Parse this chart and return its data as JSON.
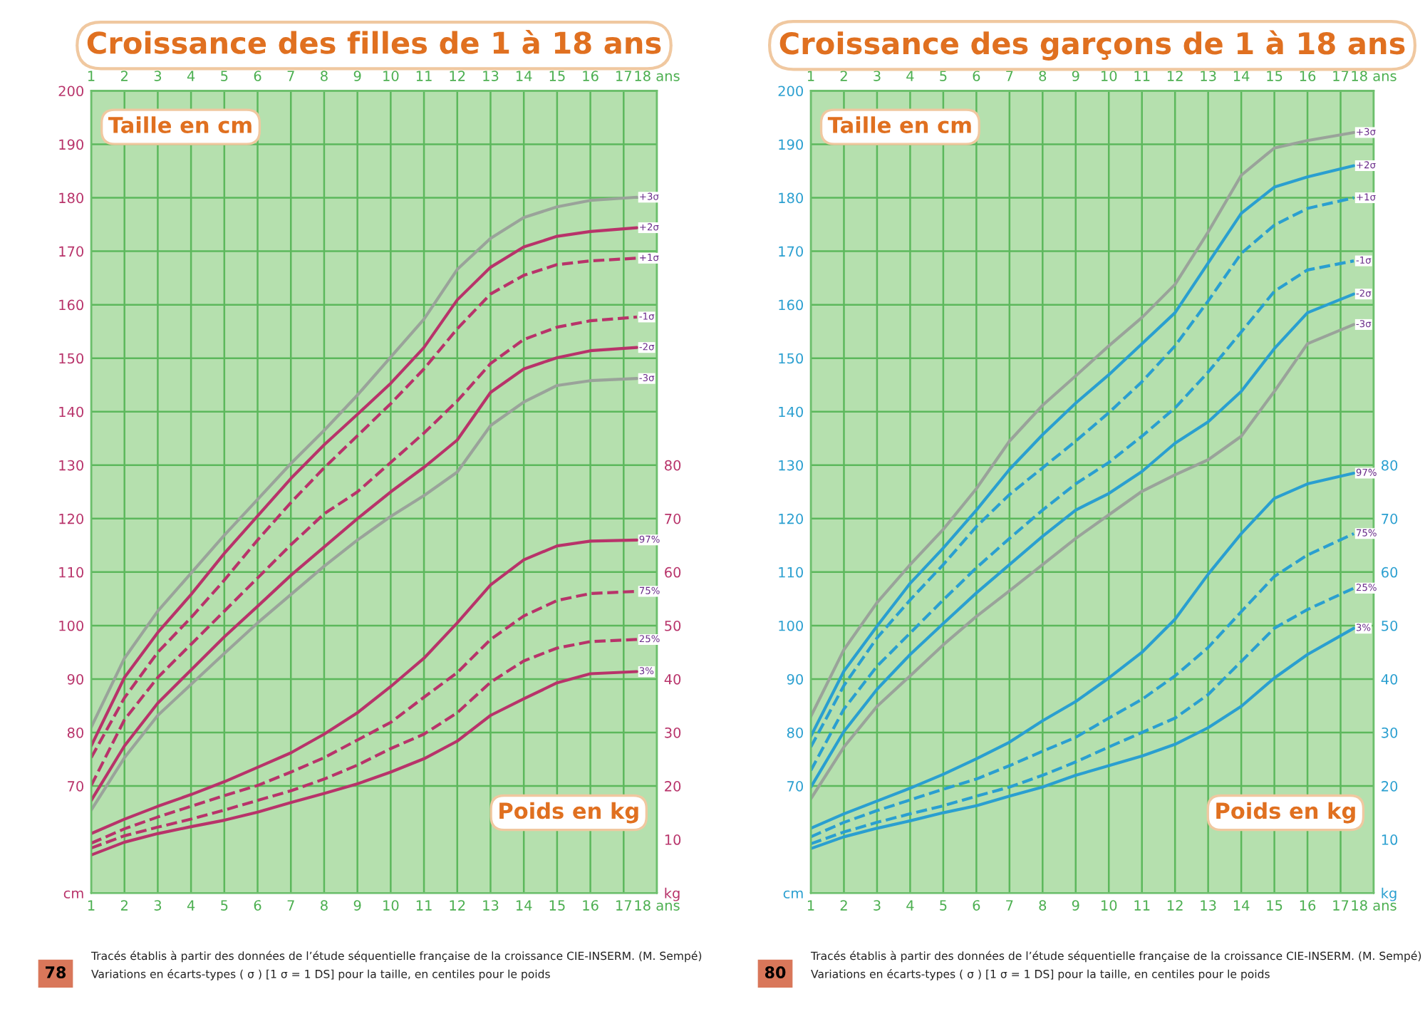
{
  "chart_data": [
    {
      "type": "line",
      "title": "Croissance des filles de 1 à 18 ans",
      "x": [
        1,
        2,
        3,
        4,
        5,
        6,
        7,
        8,
        9,
        10,
        11,
        12,
        13,
        14,
        15,
        16,
        17.4
      ],
      "xlim": [
        1,
        18
      ],
      "xticks": [
        1,
        2,
        3,
        4,
        5,
        6,
        7,
        8,
        9,
        10,
        11,
        12,
        13,
        14,
        15,
        16,
        17,
        {
          "value": 18,
          "label": "18 ans"
        }
      ],
      "x2lim": [
        1,
        18
      ],
      "x2ticks": [
        1,
        2,
        3,
        4,
        5,
        6,
        7,
        8,
        9,
        10,
        11,
        12,
        13,
        14,
        15,
        16,
        17,
        {
          "value": 18,
          "label": "18 ans"
        }
      ],
      "ylim": [
        50,
        200
      ],
      "yticks": [
        {
          "value": 50,
          "label": "cm"
        },
        70,
        80,
        90,
        100,
        110,
        120,
        130,
        140,
        150,
        160,
        170,
        180,
        190,
        200
      ],
      "y2lim": [
        0,
        150
      ],
      "y2ticks": [
        {
          "value": 0,
          "label": "kg"
        },
        10,
        20,
        30,
        40,
        50,
        60,
        70,
        80
      ],
      "grid": true,
      "legend": false,
      "annotations": [
        "Taille en cm",
        "Poids en kg",
        "78",
        "Tracés établis à partir des données de l’étude séquentielle française de la croissance CIE-INSERM. (M. Sempé)",
        "Variations en écarts-types ( σ ) [1 σ = 1 DS] pour la taille, en centiles pour le poids"
      ],
      "series": [
        {
          "name": "+3σ",
          "color": "#9aa39a",
          "line_style": "solid",
          "values": [
            81,
            93.9,
            102.7,
            109.8,
            116.9,
            123.6,
            130.3,
            136.5,
            143.1,
            150.2,
            157.3,
            166.6,
            172.4,
            176.3,
            178.3,
            179.5,
            180.1
          ]
        },
        {
          "name": "+2σ",
          "color": "#b8336a",
          "line_style": "solid",
          "values": [
            77.5,
            90.3,
            98.7,
            105.8,
            113.5,
            120.5,
            127.5,
            133.8,
            139.5,
            145.3,
            152,
            160.9,
            167,
            170.8,
            172.8,
            173.7,
            174.4
          ]
        },
        {
          "name": "+1σ",
          "color": "#b8336a",
          "line_style": "dashed",
          "values": [
            75.3,
            86.5,
            95,
            101.5,
            108.5,
            116,
            123,
            129.5,
            135.5,
            141.5,
            148,
            155.5,
            162,
            165.5,
            167.5,
            168.2,
            168.7
          ]
        },
        {
          "name": "-1σ",
          "color": "#b8336a",
          "line_style": "dashed",
          "values": [
            70.1,
            82.4,
            90.3,
            96.5,
            102.7,
            108.9,
            115.1,
            120.9,
            125,
            130.5,
            136,
            142,
            149,
            153.5,
            155.8,
            157,
            157.7
          ]
        },
        {
          "name": "-2σ",
          "color": "#b8336a",
          "line_style": "solid",
          "values": [
            67.3,
            77.5,
            85.5,
            91.7,
            97.9,
            103.6,
            109.4,
            114.7,
            120,
            125,
            129.6,
            134.7,
            143.6,
            148,
            150.1,
            151.4,
            152
          ]
        },
        {
          "name": "-3σ",
          "color": "#9aa39a",
          "line_style": "solid",
          "values": [
            65.5,
            75.3,
            83.2,
            89,
            94.8,
            100.5,
            105.8,
            111.1,
            116,
            120.4,
            124.3,
            128.7,
            137.4,
            141.8,
            144.9,
            145.8,
            146.2
          ]
        },
        {
          "name": "97%",
          "color": "#b8336a",
          "line_style": "solid",
          "axis": "y2",
          "values": [
            11.1,
            13.8,
            16.2,
            18.4,
            20.8,
            23.5,
            26.2,
            29.7,
            33.7,
            38.6,
            43.9,
            50.5,
            57.6,
            62.3,
            64.9,
            65.8,
            66
          ]
        },
        {
          "name": "75%",
          "color": "#b8336a",
          "line_style": "dashed",
          "axis": "y2",
          "values": [
            9.3,
            12,
            14.2,
            16.2,
            18.2,
            20.1,
            22.6,
            25.3,
            28.6,
            31.9,
            36.6,
            41.2,
            47.4,
            51.8,
            54.7,
            56,
            56.4
          ]
        },
        {
          "name": "25%",
          "color": "#b8336a",
          "line_style": "dashed",
          "axis": "y2",
          "values": [
            8.4,
            10.7,
            12.3,
            13.8,
            15.5,
            17.3,
            19.1,
            21.3,
            23.9,
            27,
            29.7,
            33.7,
            39.4,
            43.4,
            45.8,
            47,
            47.4
          ]
        },
        {
          "name": "3%",
          "color": "#b8336a",
          "line_style": "solid",
          "axis": "y2",
          "values": [
            7.1,
            9.5,
            11.1,
            12.4,
            13.6,
            15.1,
            16.9,
            18.6,
            20.4,
            22.6,
            25.1,
            28.4,
            33.2,
            36.3,
            39.3,
            41,
            41.4
          ]
        }
      ]
    },
    {
      "type": "line",
      "title": "Croissance des garçons de 1 à 18 ans",
      "x": [
        1,
        2,
        3,
        4,
        5,
        6,
        7,
        8,
        9,
        10,
        11,
        12,
        13,
        14,
        15,
        16,
        17.4
      ],
      "xlim": [
        1,
        18
      ],
      "xticks": [
        1,
        2,
        3,
        4,
        5,
        6,
        7,
        8,
        9,
        10,
        11,
        12,
        13,
        14,
        15,
        16,
        17,
        {
          "value": 18,
          "label": "18 ans"
        }
      ],
      "x2lim": [
        1,
        18
      ],
      "x2ticks": [
        1,
        2,
        3,
        4,
        5,
        6,
        7,
        8,
        9,
        10,
        11,
        12,
        13,
        14,
        15,
        16,
        17,
        {
          "value": 18,
          "label": "18 ans"
        }
      ],
      "ylim": [
        50,
        200
      ],
      "yticks": [
        {
          "value": 50,
          "label": "cm"
        },
        70,
        80,
        90,
        100,
        110,
        120,
        130,
        140,
        150,
        160,
        170,
        180,
        190,
        200
      ],
      "y2lim": [
        0,
        150
      ],
      "y2ticks": [
        {
          "value": 0,
          "label": "kg"
        },
        10,
        20,
        30,
        40,
        50,
        60,
        70,
        80
      ],
      "grid": true,
      "legend": false,
      "annotations": [
        "Taille en cm",
        "Poids en kg",
        "80",
        "Tracés établis à partir des données de l’étude séquentielle française de la croissance CIE-INSERM. (M. Sempé)",
        "Variations en écarts-types ( σ ) [1 σ = 1 DS] pour la taille, en centiles pour le poids"
      ],
      "series": [
        {
          "name": "+3σ",
          "color": "#9aa39a",
          "line_style": "solid",
          "values": [
            83,
            95.5,
            104.3,
            111.4,
            118,
            125.6,
            134.5,
            141.2,
            146.7,
            152.3,
            157.6,
            163.8,
            173.6,
            184.2,
            189.3,
            190.7,
            192.2
          ]
        },
        {
          "name": "+2σ",
          "color": "#2a9fd0",
          "line_style": "solid",
          "values": [
            79.3,
            91.5,
            99.9,
            107.9,
            114.5,
            121.6,
            129.2,
            135.7,
            141.6,
            146.9,
            152.7,
            158.5,
            167.8,
            177.1,
            182,
            183.9,
            186
          ]
        },
        {
          "name": "+1σ",
          "color": "#2a9fd0",
          "line_style": "dashed",
          "values": [
            77.3,
            88.8,
            97.7,
            104.8,
            111.4,
            118.5,
            124.5,
            129.5,
            134.5,
            139.8,
            145.6,
            152.3,
            160.7,
            169.6,
            174.9,
            178,
            180
          ]
        },
        {
          "name": "-1σ",
          "color": "#2a9fd0",
          "line_style": "dashed",
          "values": [
            72.9,
            84.4,
            92.4,
            98.6,
            104.8,
            110.8,
            116.3,
            121.6,
            126.5,
            130.5,
            135.4,
            140.7,
            147.4,
            154.9,
            162.5,
            166.5,
            168.2
          ]
        },
        {
          "name": "-2σ",
          "color": "#2a9fd0",
          "line_style": "solid",
          "values": [
            69.8,
            80.2,
            88.1,
            94.6,
            100.4,
            106.1,
            111.4,
            116.7,
            121.6,
            124.7,
            128.8,
            134.1,
            138.1,
            143.8,
            151.8,
            158.5,
            162
          ]
        },
        {
          "name": "-3σ",
          "color": "#9aa39a",
          "line_style": "solid",
          "values": [
            67.6,
            77.3,
            84.9,
            90.6,
            96.4,
            101.7,
            106.5,
            111.4,
            116.3,
            120.7,
            125.1,
            128.2,
            131,
            135.4,
            143.8,
            152.7,
            156.3
          ]
        },
        {
          "name": "97%",
          "color": "#2a9fd0",
          "line_style": "solid",
          "axis": "y2",
          "values": [
            12.1,
            14.8,
            17.2,
            19.6,
            22.2,
            25.1,
            28.2,
            32.2,
            35.8,
            40.2,
            45,
            51.2,
            59.6,
            67.2,
            73.8,
            76.5,
            78.5
          ]
        },
        {
          "name": "75%",
          "color": "#2a9fd0",
          "line_style": "dashed",
          "axis": "y2",
          "values": [
            10.5,
            13.2,
            15.4,
            17.4,
            19.4,
            21.3,
            23.8,
            26.5,
            29.1,
            32.7,
            36.2,
            40.6,
            45.9,
            52.6,
            59.2,
            63.2,
            67.2
          ]
        },
        {
          "name": "25%",
          "color": "#2a9fd0",
          "line_style": "dashed",
          "axis": "y2",
          "values": [
            9.2,
            11.4,
            13.2,
            14.8,
            16.3,
            18.1,
            19.8,
            22,
            24.5,
            27.3,
            30,
            32.7,
            37.1,
            43.3,
            49.5,
            53,
            57
          ]
        },
        {
          "name": "3%",
          "color": "#2a9fd0",
          "line_style": "solid",
          "axis": "y2",
          "values": [
            8.3,
            10.5,
            12.1,
            13.5,
            15,
            16.3,
            18.1,
            19.8,
            22,
            23.8,
            25.6,
            27.8,
            30.9,
            34.9,
            40.2,
            44.6,
            49.5
          ]
        }
      ]
    }
  ]
}
